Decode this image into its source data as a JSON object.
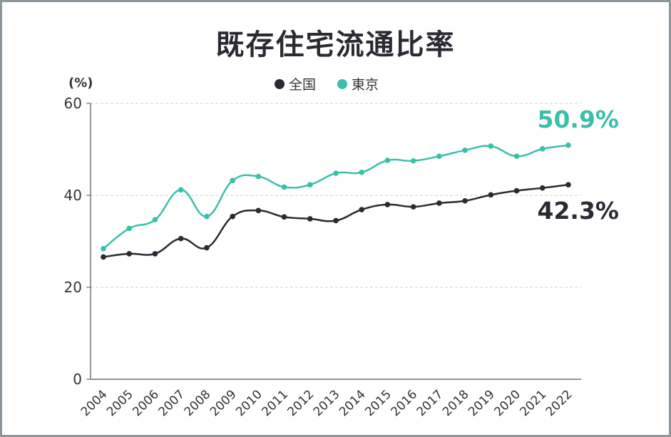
{
  "chart_data": {
    "type": "line",
    "title": "既存住宅流通比率",
    "ylabel": "(%)",
    "xlabel": "",
    "ylim": [
      0,
      60
    ],
    "yticks": [
      0,
      20,
      40,
      60
    ],
    "grid": true,
    "legend_position": "top-center",
    "categories": [
      "2004",
      "2005",
      "2006",
      "2007",
      "2008",
      "2009",
      "2010",
      "2011",
      "2012",
      "2013",
      "2014",
      "2015",
      "2016",
      "2017",
      "2018",
      "2019",
      "2020",
      "2021",
      "2022"
    ],
    "series": [
      {
        "name": "全国",
        "color": "#2a2a33",
        "values": [
          26.6,
          27.3,
          27.3,
          30.6,
          28.6,
          35.4,
          36.7,
          35.3,
          34.9,
          34.5,
          36.9,
          38.0,
          37.5,
          38.3,
          38.8,
          40.1,
          41.0,
          41.6,
          42.3
        ],
        "end_label": "42.3%"
      },
      {
        "name": "東京",
        "color": "#3bbfaa",
        "values": [
          28.4,
          32.8,
          34.7,
          41.2,
          35.4,
          43.2,
          44.1,
          41.8,
          42.3,
          44.8,
          45.0,
          47.6,
          47.5,
          48.5,
          49.8,
          50.7,
          48.5,
          50.1,
          50.9
        ],
        "end_label": "50.9%"
      }
    ]
  }
}
